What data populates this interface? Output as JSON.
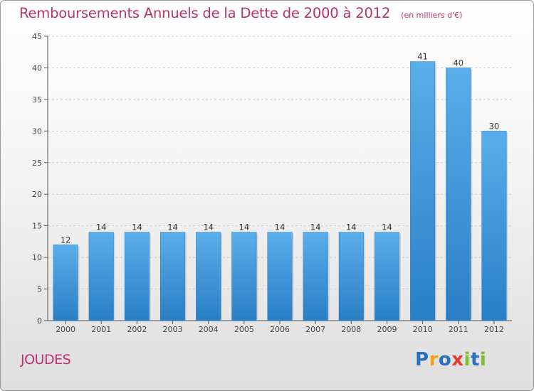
{
  "header": {
    "title": "Remboursements Annuels de la Dette de 2000 à 2012",
    "unit": "(en milliers d'€)"
  },
  "commune": "JOUDES",
  "logo": {
    "letters": [
      "P",
      "r",
      "o",
      "x",
      "i",
      "t",
      "i"
    ],
    "colors": [
      "#2a6fbf",
      "#f2a11a",
      "#2a6fbf",
      "#e8382a",
      "#7cbf2a",
      "#2a6fbf",
      "#7cbf2a"
    ]
  },
  "chart_data": {
    "type": "bar",
    "categories": [
      "2000",
      "2001",
      "2002",
      "2003",
      "2004",
      "2005",
      "2006",
      "2007",
      "2008",
      "2009",
      "2010",
      "2011",
      "2012"
    ],
    "values": [
      12,
      14,
      14,
      14,
      14,
      14,
      14,
      14,
      14,
      14,
      41,
      40,
      30
    ],
    "data_labels": [
      "12",
      "14",
      "14",
      "14",
      "14",
      "14",
      "14",
      "14",
      "14",
      "14",
      "41",
      "40",
      "30"
    ],
    "yticks": [
      0,
      5,
      10,
      15,
      20,
      25,
      30,
      35,
      40,
      45
    ],
    "ylim": [
      0,
      45
    ],
    "grid": true,
    "bar_color": "#4a9fe0"
  }
}
